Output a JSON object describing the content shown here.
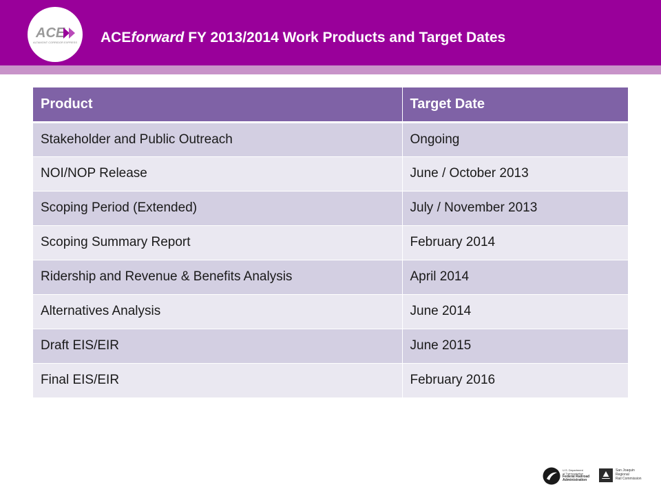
{
  "header": {
    "logo_text": "ACE",
    "logo_subtext": "ALTAMONT CORRIDOR EXPRESS",
    "title_lead": "ACE",
    "title_italic": "forward",
    "title_rest": " FY 2013/2014 Work Products and Target Dates"
  },
  "table": {
    "columns": [
      "Product",
      "Target Date"
    ],
    "rows": [
      [
        "Stakeholder and Public Outreach",
        "Ongoing"
      ],
      [
        "NOI/NOP Release",
        "June / October 2013"
      ],
      [
        "Scoping Period (Extended)",
        "July / November 2013"
      ],
      [
        "Scoping Summary Report",
        "February 2014"
      ],
      [
        "Ridership and Revenue  & Benefits Analysis",
        "April 2014"
      ],
      [
        "Alternatives Analysis",
        "June 2014"
      ],
      [
        "Draft EIS/EIR",
        "June 2015"
      ],
      [
        "Final EIS/EIR",
        "February 2016"
      ]
    ]
  },
  "footer": {
    "fra_lines": [
      "U.S. Department",
      "of Transportation"
    ],
    "fra_bold_lines": [
      "Federal Railroad",
      "Administration"
    ],
    "sjrrc_lines": [
      "San Joaquin",
      "Regional",
      "Rail Commission"
    ]
  },
  "colors": {
    "header_band": "#99009a",
    "header_stripe": "#c893c9",
    "table_header": "#7f62a6",
    "row_odd": "#d3cfe2",
    "row_even": "#eae8f1"
  }
}
